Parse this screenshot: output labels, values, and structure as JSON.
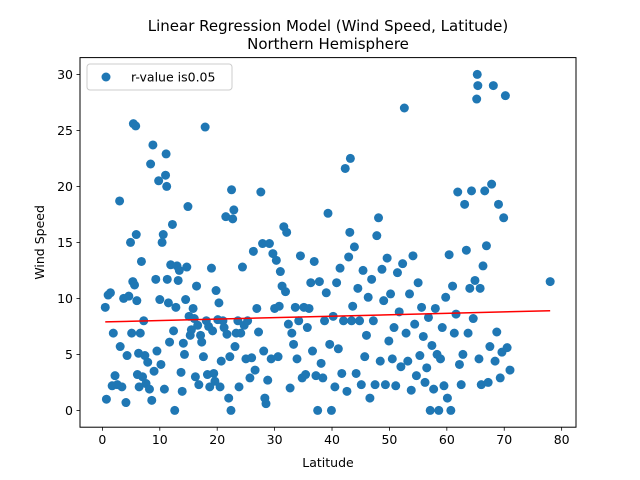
{
  "chart_data": {
    "type": "scatter",
    "title": "Linear Regression Model (Wind Speed, Latitude)",
    "subtitle": "Northern Hemisphere",
    "xlabel": "Latitude",
    "ylabel": "Wind Speed",
    "xlim": [
      -3.9,
      82.5
    ],
    "ylim": [
      -1.5,
      31.5
    ],
    "xticks": [
      0,
      10,
      20,
      30,
      40,
      50,
      60,
      70,
      80
    ],
    "yticks": [
      0,
      5,
      10,
      15,
      20,
      25,
      30
    ],
    "grid": false,
    "legend": {
      "position": "upper-left",
      "entries": [
        "r-value is0.05"
      ]
    },
    "series": [
      {
        "name": "r-value is0.05",
        "kind": "scatter",
        "color": "#1f77b4",
        "points": [
          [
            0.5,
            9.2
          ],
          [
            0.7,
            1.0
          ],
          [
            1,
            10.3
          ],
          [
            1.4,
            10.5
          ],
          [
            1.7,
            2.2
          ],
          [
            1.9,
            6.9
          ],
          [
            2.2,
            3.1
          ],
          [
            2.6,
            2.3
          ],
          [
            3,
            18.7
          ],
          [
            3.1,
            5.7
          ],
          [
            3.4,
            2.1
          ],
          [
            3.7,
            10.0
          ],
          [
            4.1,
            0.7
          ],
          [
            4.3,
            4.9
          ],
          [
            4.6,
            10.2
          ],
          [
            4.9,
            15.0
          ],
          [
            5.1,
            6.9
          ],
          [
            5.3,
            11.5
          ],
          [
            5.4,
            25.6
          ],
          [
            5.6,
            11.2
          ],
          [
            5.8,
            25.4
          ],
          [
            5.9,
            15.7
          ],
          [
            6.0,
            9.8
          ],
          [
            6.1,
            3.2
          ],
          [
            6.3,
            5.1
          ],
          [
            6.4,
            2.1
          ],
          [
            6.6,
            6.9
          ],
          [
            6.8,
            13.3
          ],
          [
            7.0,
            3.0
          ],
          [
            7.2,
            8.0
          ],
          [
            7.4,
            4.9
          ],
          [
            7.6,
            2.4
          ],
          [
            7.9,
            4.3
          ],
          [
            8.2,
            1.9
          ],
          [
            8.4,
            22.0
          ],
          [
            8.6,
            0.9
          ],
          [
            8.8,
            23.7
          ],
          [
            9.0,
            3.5
          ],
          [
            9.3,
            11.7
          ],
          [
            9.5,
            5.3
          ],
          [
            9.8,
            20.5
          ],
          [
            10.0,
            9.9
          ],
          [
            10.2,
            4.1
          ],
          [
            10.4,
            15.0
          ],
          [
            10.6,
            15.7
          ],
          [
            10.8,
            1.9
          ],
          [
            11.0,
            21.0
          ],
          [
            11.1,
            22.9
          ],
          [
            11.2,
            20.0
          ],
          [
            11.3,
            11.7
          ],
          [
            11.5,
            9.6
          ],
          [
            11.7,
            6.1
          ],
          [
            11.9,
            13.0
          ],
          [
            12.2,
            16.6
          ],
          [
            12.4,
            7.1
          ],
          [
            12.6,
            0.0
          ],
          [
            12.8,
            9.2
          ],
          [
            13.0,
            12.9
          ],
          [
            13.2,
            11.6
          ],
          [
            13.4,
            12.5
          ],
          [
            13.7,
            3.4
          ],
          [
            13.9,
            1.7
          ],
          [
            14.1,
            6.0
          ],
          [
            14.3,
            5.0
          ],
          [
            14.5,
            9.9
          ],
          [
            14.7,
            12.8
          ],
          [
            14.9,
            18.2
          ],
          [
            15.1,
            8.4
          ],
          [
            15.3,
            6.7
          ],
          [
            15.5,
            7.2
          ],
          [
            15.8,
            9.1
          ],
          [
            16.0,
            8.2
          ],
          [
            16.2,
            3.0
          ],
          [
            16.4,
            11.1
          ],
          [
            16.6,
            7.6
          ],
          [
            16.8,
            2.3
          ],
          [
            17.1,
            6.7
          ],
          [
            17.3,
            6.1
          ],
          [
            17.6,
            4.8
          ],
          [
            17.9,
            25.3
          ],
          [
            18.1,
            8.0
          ],
          [
            18.3,
            3.2
          ],
          [
            18.5,
            7.5
          ],
          [
            18.7,
            2.1
          ],
          [
            19.0,
            12.7
          ],
          [
            19.2,
            7.1
          ],
          [
            19.4,
            3.3
          ],
          [
            19.6,
            2.6
          ],
          [
            19.8,
            10.7
          ],
          [
            20.1,
            8.1
          ],
          [
            20.3,
            9.6
          ],
          [
            20.5,
            2.1
          ],
          [
            20.7,
            4.4
          ],
          [
            21.0,
            8.0
          ],
          [
            21.2,
            7.4
          ],
          [
            21.5,
            17.3
          ],
          [
            21.7,
            6.8
          ],
          [
            22.0,
            1.1
          ],
          [
            22.2,
            4.8
          ],
          [
            22.4,
            0.0
          ],
          [
            22.5,
            19.7
          ],
          [
            22.7,
            17.1
          ],
          [
            22.9,
            17.9
          ],
          [
            23.1,
            5.7
          ],
          [
            23.3,
            6.9
          ],
          [
            23.6,
            8.0
          ],
          [
            23.8,
            2.1
          ],
          [
            24.1,
            6.9
          ],
          [
            24.4,
            12.8
          ],
          [
            24.7,
            7.6
          ],
          [
            25.0,
            4.6
          ],
          [
            25.3,
            8.0
          ],
          [
            25.7,
            2.9
          ],
          [
            26.0,
            4.7
          ],
          [
            26.3,
            14.2
          ],
          [
            26.6,
            3.6
          ],
          [
            26.9,
            9.1
          ],
          [
            27.2,
            7.0
          ],
          [
            27.6,
            19.5
          ],
          [
            27.9,
            14.9
          ],
          [
            28.1,
            5.3
          ],
          [
            28.3,
            1.1
          ],
          [
            28.5,
            0.6
          ],
          [
            28.8,
            2.7
          ],
          [
            29.1,
            14.9
          ],
          [
            29.4,
            4.6
          ],
          [
            29.7,
            14.0
          ],
          [
            30.0,
            9.1
          ],
          [
            30.3,
            13.4
          ],
          [
            30.6,
            4.8
          ],
          [
            30.8,
            9.3
          ],
          [
            31.0,
            12.4
          ],
          [
            31.3,
            11.1
          ],
          [
            31.6,
            16.4
          ],
          [
            31.9,
            10.6
          ],
          [
            32.1,
            15.9
          ],
          [
            32.4,
            7.7
          ],
          [
            32.7,
            2.0
          ],
          [
            33.0,
            6.9
          ],
          [
            33.3,
            5.9
          ],
          [
            33.6,
            9.2
          ],
          [
            33.9,
            4.6
          ],
          [
            34.2,
            8.0
          ],
          [
            34.5,
            13.8
          ],
          [
            34.8,
            2.9
          ],
          [
            35.1,
            9.2
          ],
          [
            35.4,
            3.2
          ],
          [
            35.7,
            7.4
          ],
          [
            36.0,
            9.1
          ],
          [
            36.3,
            11.4
          ],
          [
            36.6,
            5.3
          ],
          [
            36.9,
            13.3
          ],
          [
            37.2,
            3.1
          ],
          [
            37.5,
            0.0
          ],
          [
            37.8,
            11.5
          ],
          [
            38.1,
            4.2
          ],
          [
            38.4,
            2.9
          ],
          [
            38.7,
            8.0
          ],
          [
            39.0,
            10.5
          ],
          [
            39.3,
            17.6
          ],
          [
            39.6,
            5.9
          ],
          [
            39.9,
            0.0
          ],
          [
            40.2,
            8.4
          ],
          [
            40.5,
            2.1
          ],
          [
            40.8,
            11.4
          ],
          [
            41.1,
            5.5
          ],
          [
            41.4,
            12.7
          ],
          [
            41.7,
            3.3
          ],
          [
            42.0,
            8.0
          ],
          [
            42.3,
            21.6
          ],
          [
            42.6,
            1.7
          ],
          [
            42.9,
            13.7
          ],
          [
            43.1,
            15.9
          ],
          [
            43.2,
            22.5
          ],
          [
            43.4,
            8.0
          ],
          [
            43.6,
            9.3
          ],
          [
            43.9,
            14.6
          ],
          [
            44.2,
            3.3
          ],
          [
            44.5,
            10.9
          ],
          [
            44.8,
            8.0
          ],
          [
            45.1,
            2.3
          ],
          [
            45.4,
            12.5
          ],
          [
            45.7,
            4.8
          ],
          [
            46.0,
            6.7
          ],
          [
            46.3,
            10.1
          ],
          [
            46.6,
            1.1
          ],
          [
            46.9,
            11.7
          ],
          [
            47.2,
            8.0
          ],
          [
            47.5,
            2.3
          ],
          [
            47.8,
            15.6
          ],
          [
            48.1,
            17.2
          ],
          [
            48.4,
            4.4
          ],
          [
            48.7,
            12.6
          ],
          [
            49.0,
            9.8
          ],
          [
            49.3,
            2.3
          ],
          [
            49.6,
            13.6
          ],
          [
            49.9,
            6.2
          ],
          [
            50.2,
            10.4
          ],
          [
            50.5,
            4.6
          ],
          [
            50.8,
            7.4
          ],
          [
            51.1,
            2.2
          ],
          [
            51.4,
            12.3
          ],
          [
            51.7,
            8.8
          ],
          [
            52.0,
            3.9
          ],
          [
            52.3,
            13.1
          ],
          [
            52.6,
            27.0
          ],
          [
            52.9,
            6.9
          ],
          [
            53.2,
            4.4
          ],
          [
            53.5,
            10.4
          ],
          [
            53.8,
            1.8
          ],
          [
            54.1,
            13.8
          ],
          [
            54.4,
            7.7
          ],
          [
            54.7,
            3.1
          ],
          [
            55.0,
            11.4
          ],
          [
            55.3,
            4.9
          ],
          [
            55.6,
            9.2
          ],
          [
            55.9,
            6.6
          ],
          [
            56.2,
            2.5
          ],
          [
            56.5,
            3.8
          ],
          [
            56.8,
            8.3
          ],
          [
            57.1,
            0.0
          ],
          [
            57.4,
            5.8
          ],
          [
            57.7,
            1.9
          ],
          [
            58.0,
            9.1
          ],
          [
            58.3,
            5.0
          ],
          [
            58.6,
            0.0
          ],
          [
            58.9,
            4.6
          ],
          [
            59.2,
            7.4
          ],
          [
            59.5,
            2.2
          ],
          [
            59.8,
            10.1
          ],
          [
            60.1,
            1.1
          ],
          [
            60.4,
            13.9
          ],
          [
            60.7,
            0.0
          ],
          [
            61.0,
            11.1
          ],
          [
            61.3,
            6.9
          ],
          [
            61.6,
            8.6
          ],
          [
            61.9,
            19.5
          ],
          [
            62.2,
            4.1
          ],
          [
            62.5,
            2.3
          ],
          [
            62.8,
            5.0
          ],
          [
            63.1,
            18.4
          ],
          [
            63.4,
            14.3
          ],
          [
            63.7,
            6.9
          ],
          [
            64.0,
            10.9
          ],
          [
            64.3,
            19.6
          ],
          [
            64.6,
            8.2
          ],
          [
            64.9,
            11.6
          ],
          [
            65.2,
            27.8
          ],
          [
            65.3,
            30.0
          ],
          [
            65.4,
            29.0
          ],
          [
            65.6,
            4.6
          ],
          [
            65.8,
            10.9
          ],
          [
            66.0,
            2.3
          ],
          [
            66.3,
            12.9
          ],
          [
            66.6,
            19.6
          ],
          [
            66.9,
            14.7
          ],
          [
            67.2,
            2.5
          ],
          [
            67.5,
            5.7
          ],
          [
            67.8,
            20.2
          ],
          [
            68.1,
            29.0
          ],
          [
            68.4,
            4.4
          ],
          [
            68.7,
            7.0
          ],
          [
            69.0,
            18.4
          ],
          [
            69.3,
            2.9
          ],
          [
            69.6,
            5.2
          ],
          [
            69.9,
            17.2
          ],
          [
            70.2,
            28.1
          ],
          [
            70.5,
            5.6
          ],
          [
            71.0,
            3.6
          ],
          [
            78.0,
            11.5
          ]
        ]
      },
      {
        "name": "regression",
        "kind": "line",
        "color": "#ff0000",
        "x": [
          0.5,
          78.0
        ],
        "y": [
          7.9,
          8.9
        ]
      }
    ]
  },
  "colors": {
    "scatter": "#1f77b4",
    "line": "#ff0000"
  }
}
